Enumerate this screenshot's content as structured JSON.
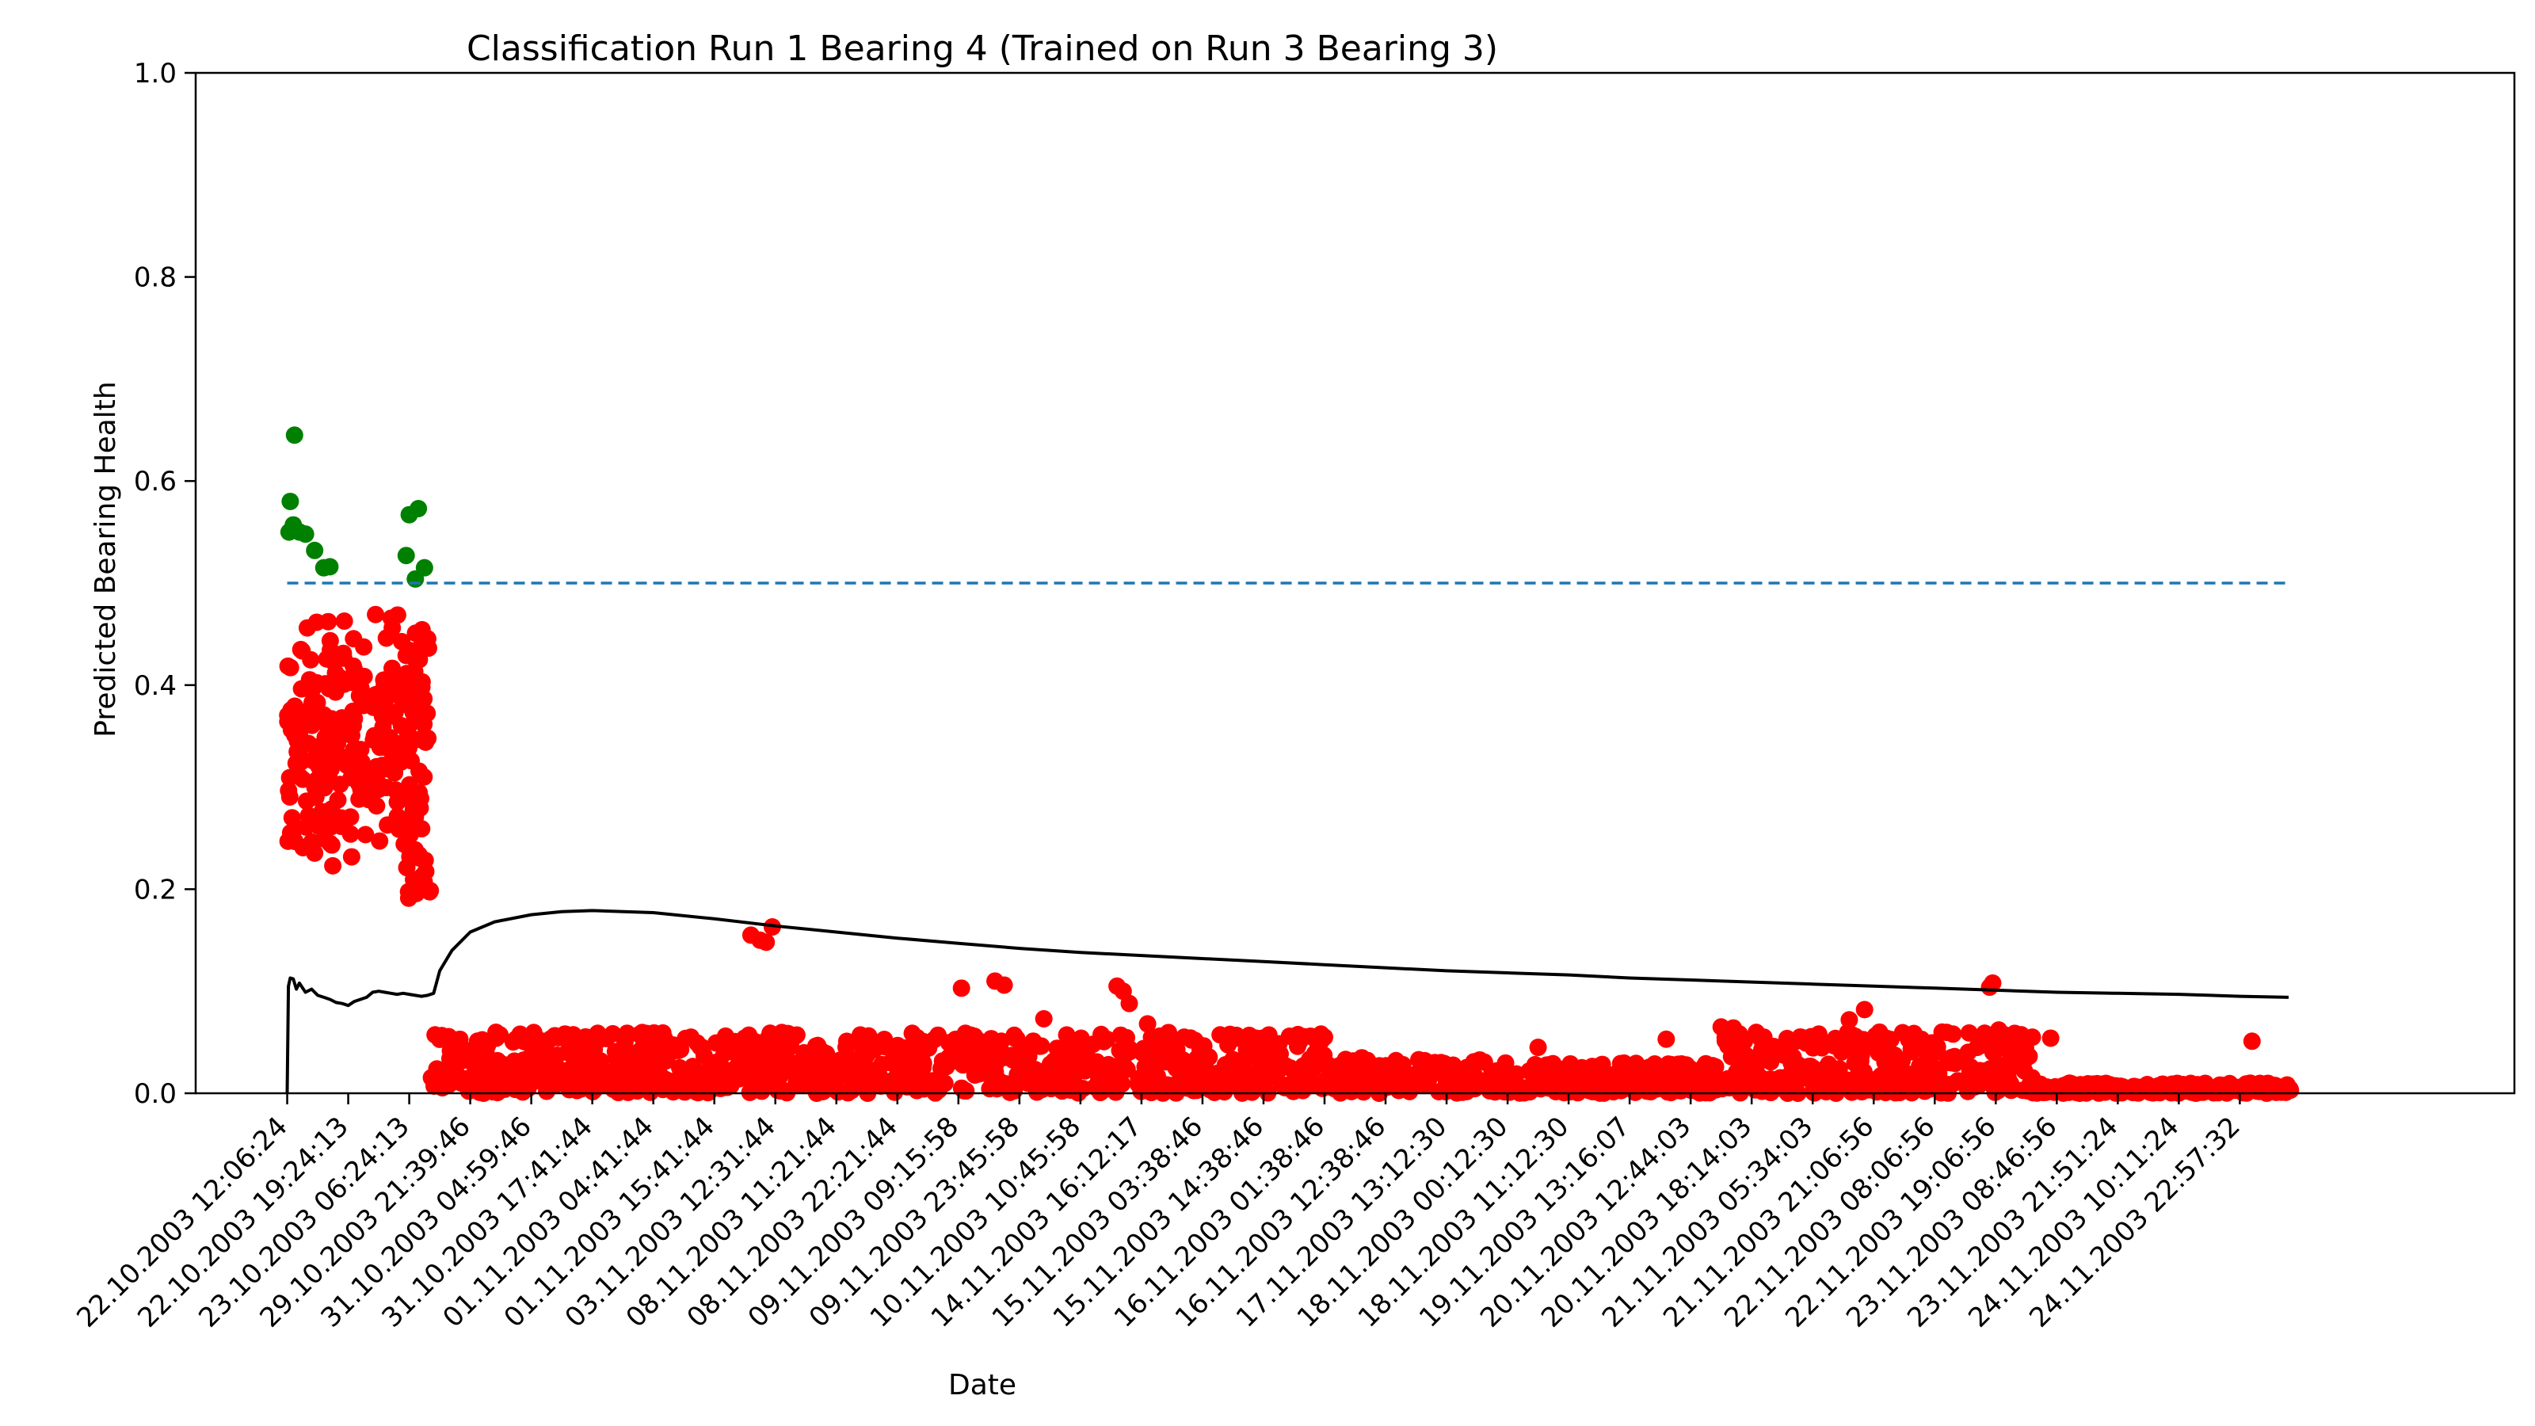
{
  "chart_data": {
    "type": "scatter",
    "title": "Classification Run 1 Bearing 4 (Trained on Run 3 Bearing 3)",
    "xlabel": "Date",
    "ylabel": "Predicted Bearing Health",
    "ylim": [
      0.0,
      1.0
    ],
    "yticks": [
      "0.0",
      "0.2",
      "0.4",
      "0.6",
      "0.8",
      "1.0"
    ],
    "x_tick_labels": [
      "22.10.2003 12:06:24",
      "22.10.2003 19:24:13",
      "23.10.2003 06:24:13",
      "29.10.2003 21:39:46",
      "31.10.2003 04:59:46",
      "31.10.2003 17:41:44",
      "01.11.2003 04:41:44",
      "01.11.2003 15:41:44",
      "03.11.2003 12:31:44",
      "08.11.2003 11:21:44",
      "08.11.2003 22:21:44",
      "09.11.2003 09:15:58",
      "09.11.2003 23:45:58",
      "10.11.2003 10:45:58",
      "14.11.2003 16:12:17",
      "15.11.2003 03:38:46",
      "15.11.2003 14:38:46",
      "16.11.2003 01:38:46",
      "16.11.2003 12:38:46",
      "17.11.2003 13:12:30",
      "18.11.2003 00:12:30",
      "18.11.2003 11:12:30",
      "19.11.2003 13:16:07",
      "20.11.2003 12:44:03",
      "20.11.2003 18:14:03",
      "21.11.2003 05:34:03",
      "21.11.2003 21:06:56",
      "22.11.2003 08:06:56",
      "22.11.2003 19:06:56",
      "23.11.2003 08:46:56",
      "23.11.2003 21:51:24",
      "24.11.2003 10:11:24",
      "24.11.2003 22:57:32"
    ],
    "xlim": [
      -1.5,
      36.5
    ],
    "threshold": {
      "value": 0.5,
      "x_range": [
        0,
        32.8
      ],
      "style": "dashed",
      "color": "#1f77b4"
    },
    "colors": {
      "healthy": "#008000",
      "faulty": "#ff0000",
      "trend": "#000000"
    },
    "series": [
      {
        "kind": "points-healthy",
        "points": [
          [
            0.03,
            0.55
          ],
          [
            0.05,
            0.58
          ],
          [
            0.1,
            0.557
          ],
          [
            0.12,
            0.645
          ],
          [
            0.2,
            0.55
          ],
          [
            0.3,
            0.548
          ],
          [
            0.45,
            0.532
          ],
          [
            0.6,
            0.515
          ],
          [
            0.7,
            0.516
          ],
          [
            1.95,
            0.527
          ],
          [
            2.0,
            0.567
          ],
          [
            2.1,
            0.504
          ],
          [
            2.15,
            0.573
          ],
          [
            2.25,
            0.515
          ]
        ]
      },
      {
        "kind": "points-faulty",
        "cloud_a": {
          "x_range": [
            0.0,
            1.95
          ],
          "y_range": [
            0.145,
            0.495
          ],
          "count": 230
        },
        "cloud_b": {
          "x_range": [
            1.95,
            2.35
          ],
          "y_range": [
            0.185,
            0.455
          ],
          "count": 70
        },
        "band": {
          "x_range": [
            2.35,
            32.85
          ],
          "y_range": [
            0.0,
            0.06
          ],
          "count": 1700
        },
        "highlights": [
          [
            7.6,
            0.155
          ],
          [
            7.75,
            0.15
          ],
          [
            7.85,
            0.148
          ],
          [
            7.95,
            0.163
          ],
          [
            11.05,
            0.103
          ],
          [
            11.6,
            0.11
          ],
          [
            11.75,
            0.106
          ],
          [
            12.4,
            0.073
          ],
          [
            13.6,
            0.105
          ],
          [
            13.7,
            0.1
          ],
          [
            13.8,
            0.088
          ],
          [
            14.1,
            0.068
          ],
          [
            14.3,
            0.056
          ],
          [
            14.7,
            0.055
          ],
          [
            17.0,
            0.055
          ],
          [
            20.5,
            0.045
          ],
          [
            22.6,
            0.053
          ],
          [
            23.5,
            0.065
          ],
          [
            23.7,
            0.064
          ],
          [
            25.1,
            0.058
          ],
          [
            25.6,
            0.072
          ],
          [
            25.85,
            0.082
          ],
          [
            27.3,
            0.058
          ],
          [
            27.9,
            0.104
          ],
          [
            27.95,
            0.108
          ],
          [
            28.05,
            0.062
          ],
          [
            28.4,
            0.056
          ],
          [
            28.6,
            0.055
          ],
          [
            28.9,
            0.054
          ],
          [
            32.2,
            0.051
          ]
        ],
        "flat_tail": {
          "x_range": [
            28.6,
            32.85
          ],
          "y": 0.003
        }
      },
      {
        "kind": "trend-line",
        "points": [
          [
            0,
            0.0
          ],
          [
            0.02,
            0.105
          ],
          [
            0.05,
            0.113
          ],
          [
            0.1,
            0.112
          ],
          [
            0.15,
            0.102
          ],
          [
            0.2,
            0.108
          ],
          [
            0.3,
            0.099
          ],
          [
            0.4,
            0.102
          ],
          [
            0.5,
            0.096
          ],
          [
            0.6,
            0.094
          ],
          [
            0.7,
            0.092
          ],
          [
            0.8,
            0.089
          ],
          [
            0.9,
            0.088
          ],
          [
            1.0,
            0.086
          ],
          [
            1.1,
            0.09
          ],
          [
            1.2,
            0.092
          ],
          [
            1.3,
            0.094
          ],
          [
            1.4,
            0.099
          ],
          [
            1.5,
            0.1
          ],
          [
            1.6,
            0.099
          ],
          [
            1.7,
            0.098
          ],
          [
            1.8,
            0.097
          ],
          [
            1.9,
            0.098
          ],
          [
            2.0,
            0.097
          ],
          [
            2.1,
            0.096
          ],
          [
            2.2,
            0.095
          ],
          [
            2.3,
            0.096
          ],
          [
            2.4,
            0.098
          ],
          [
            2.5,
            0.12
          ],
          [
            2.7,
            0.14
          ],
          [
            3.0,
            0.158
          ],
          [
            3.4,
            0.168
          ],
          [
            4.0,
            0.175
          ],
          [
            4.5,
            0.178
          ],
          [
            5.0,
            0.179
          ],
          [
            6.0,
            0.177
          ],
          [
            7.0,
            0.171
          ],
          [
            8.0,
            0.164
          ],
          [
            9.0,
            0.158
          ],
          [
            10.0,
            0.152
          ],
          [
            11.0,
            0.147
          ],
          [
            12.0,
            0.142
          ],
          [
            13.0,
            0.138
          ],
          [
            14.0,
            0.135
          ],
          [
            15.0,
            0.132
          ],
          [
            16.0,
            0.129
          ],
          [
            17.0,
            0.126
          ],
          [
            18.0,
            0.123
          ],
          [
            19.0,
            0.12
          ],
          [
            20.0,
            0.118
          ],
          [
            21.0,
            0.116
          ],
          [
            22.0,
            0.113
          ],
          [
            23.0,
            0.111
          ],
          [
            24.0,
            0.109
          ],
          [
            25.0,
            0.107
          ],
          [
            26.0,
            0.105
          ],
          [
            27.0,
            0.103
          ],
          [
            28.0,
            0.101
          ],
          [
            29.0,
            0.099
          ],
          [
            30.0,
            0.098
          ],
          [
            31.0,
            0.097
          ],
          [
            32.0,
            0.095
          ],
          [
            32.8,
            0.094
          ]
        ]
      }
    ]
  }
}
